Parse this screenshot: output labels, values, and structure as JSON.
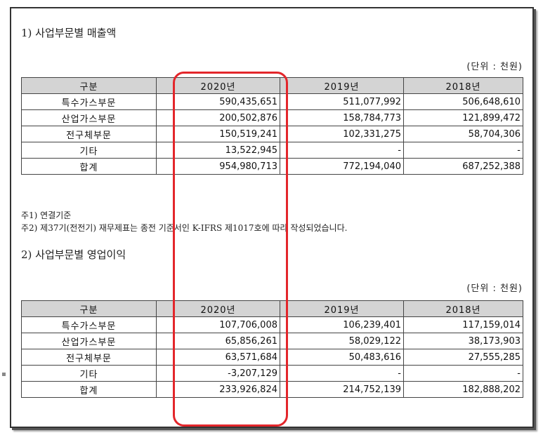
{
  "section1": {
    "title": "1) 사업부문별 매출액",
    "unit": "(단위 : 천원)",
    "headers": [
      "구분",
      "2020년",
      "2019년",
      "2018년"
    ],
    "rows": [
      {
        "label": "특수가스부문",
        "y2020": "590,435,651",
        "y2019": "511,077,992",
        "y2018": "506,648,610"
      },
      {
        "label": "산업가스부문",
        "y2020": "200,502,876",
        "y2019": "158,784,773",
        "y2018": "121,899,472"
      },
      {
        "label": "전구체부문",
        "y2020": "150,519,241",
        "y2019": "102,331,275",
        "y2018": "58,704,306"
      },
      {
        "label": "기타",
        "y2020": "13,522,945",
        "y2019": "-",
        "y2018": "-"
      },
      {
        "label": "합계",
        "y2020": "954,980,713",
        "y2019": "772,194,040",
        "y2018": "687,252,388"
      }
    ]
  },
  "notes": {
    "note1": "주1) 연결기준",
    "note2": "주2) 제37기(전전기) 재무제표는 종전 기준서인 K-IFRS 제1017호에 따라 작성되었습니다."
  },
  "section2": {
    "title": "2) 사업부문별 영업이익",
    "unit": "(단위 : 천원)",
    "headers": [
      "구분",
      "2020년",
      "2019년",
      "2018년"
    ],
    "rows": [
      {
        "label": "특수가스부문",
        "y2020": "107,706,008",
        "y2019": "106,239,401",
        "y2018": "117,159,014"
      },
      {
        "label": "산업가스부문",
        "y2020": "65,856,261",
        "y2019": "58,029,122",
        "y2018": "38,173,903"
      },
      {
        "label": "전구체부문",
        "y2020": "63,571,684",
        "y2019": "50,483,616",
        "y2018": "27,555,285"
      },
      {
        "label": "기타",
        "y2020": "-3,207,129",
        "y2019": "-",
        "y2018": "-"
      },
      {
        "label": "합계",
        "y2020": "233,926,824",
        "y2019": "214,752,139",
        "y2018": "182,888,202"
      }
    ]
  },
  "highlight_color": "#e3262b"
}
